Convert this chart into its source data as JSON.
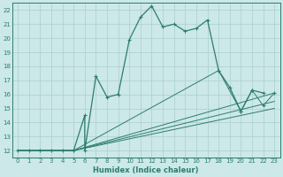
{
  "xlabel": "Humidex (Indice chaleur)",
  "bg_color": "#cce8e8",
  "line_color": "#2d7d6e",
  "grid_color": "#aacfcf",
  "xlim": [
    -0.5,
    23.5
  ],
  "ylim": [
    11.5,
    22.5
  ],
  "xticks": [
    0,
    1,
    2,
    3,
    4,
    5,
    6,
    7,
    8,
    9,
    10,
    11,
    12,
    13,
    14,
    15,
    16,
    17,
    18,
    19,
    20,
    21,
    22,
    23
  ],
  "yticks": [
    12,
    13,
    14,
    15,
    16,
    17,
    18,
    19,
    20,
    21,
    22
  ],
  "main_x": [
    0,
    1,
    2,
    3,
    4,
    5,
    6,
    6,
    7,
    8,
    9,
    10,
    11,
    12,
    13,
    14,
    15,
    16,
    17,
    18,
    19,
    20,
    21,
    22
  ],
  "main_y": [
    12,
    12,
    12,
    12,
    12,
    12,
    14.5,
    12,
    17.3,
    15.8,
    16.0,
    19.9,
    21.5,
    22.3,
    20.8,
    21.0,
    20.5,
    20.7,
    21.3,
    17.7,
    16.5,
    14.8,
    16.3,
    16.1
  ],
  "trend1_x": [
    0,
    5,
    23
  ],
  "trend1_y": [
    12,
    12,
    16.1
  ],
  "trend2_x": [
    0,
    5,
    23
  ],
  "trend2_y": [
    12,
    12,
    15.5
  ],
  "trend3_x": [
    0,
    5,
    23
  ],
  "trend3_y": [
    12,
    12,
    15.0
  ],
  "trend4_x": [
    5,
    18,
    20,
    21,
    22,
    23
  ],
  "trend4_y": [
    12,
    17.7,
    14.8,
    16.3,
    15.2,
    16.1
  ]
}
